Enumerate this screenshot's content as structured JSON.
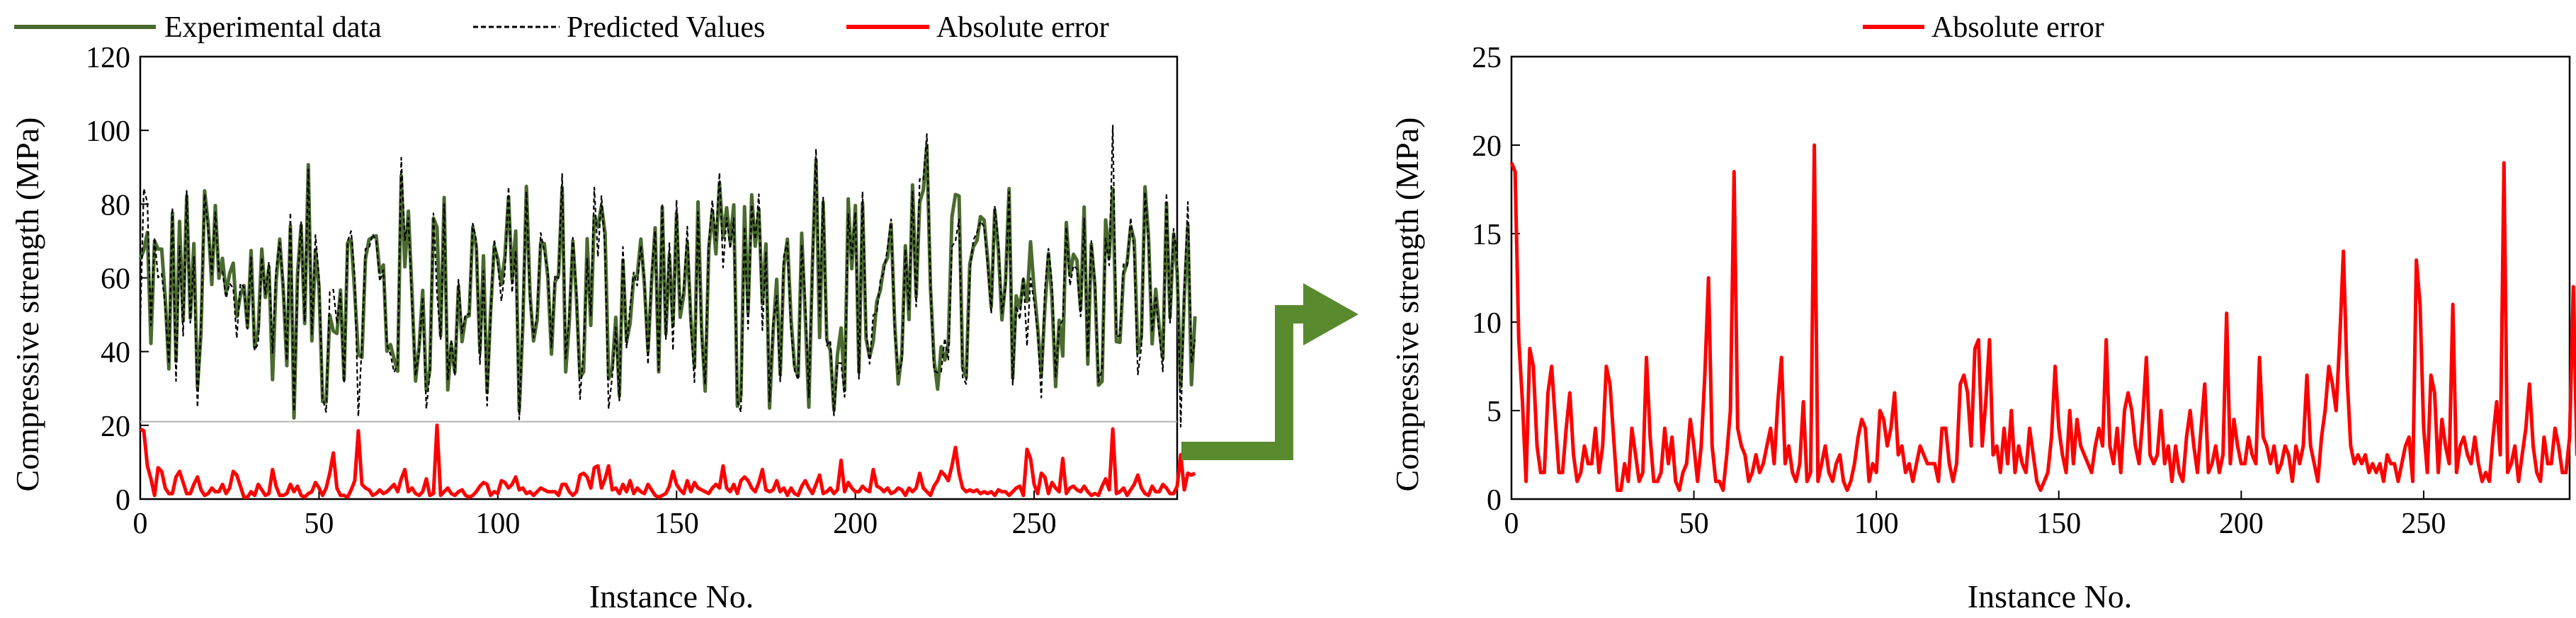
{
  "colors": {
    "experimental": "#4a6a2f",
    "predicted": "#000000",
    "absolute_error": "#ff0000",
    "arrow": "#5a8a2e",
    "reference_line": "#b3b3b3"
  },
  "chart_data": [
    {
      "type": "line",
      "xlabel": "Instance No.",
      "ylabel": "Compressive strength (MPa)",
      "xlim": [
        0,
        290
      ],
      "ylim": [
        0,
        120
      ],
      "xticks": [
        0,
        50,
        100,
        150,
        200,
        250
      ],
      "yticks": [
        0,
        20,
        40,
        60,
        80,
        100,
        120
      ],
      "grid": false,
      "legend_position": "top (outside)",
      "reference_line_y": 21,
      "series": [
        {
          "name": "Experimental data",
          "style": "solid",
          "color": "#4a6a2f",
          "x_start": 0,
          "x_step": 1,
          "values": []
        },
        {
          "name": "Predicted Values",
          "style": "dashed",
          "color": "#000000",
          "x_start": 0,
          "x_step": 1,
          "values": []
        },
        {
          "name": "Absolute error",
          "style": "solid",
          "color": "#ff0000",
          "x_start": 0,
          "x_step": 1,
          "values": [
            19,
            18.5,
            9,
            5.5,
            1,
            8.5,
            7.5,
            3,
            1.5,
            1.5,
            6,
            7.5,
            4.5,
            1.5,
            1.5,
            4,
            6,
            2.5,
            1,
            1.5,
            3,
            2,
            2,
            4,
            1.5,
            3,
            7.5,
            6.5,
            3.5,
            0.5,
            0.5,
            2,
            1,
            4,
            2.5,
            1,
            1.5,
            8,
            3.5,
            1,
            1,
            1.5,
            4,
            2,
            3.5,
            1,
            0.5,
            1.5,
            2,
            4.5,
            3,
            1,
            3,
            7,
            12.5,
            3,
            1,
            1,
            0.5,
            2.5,
            5,
            18.5,
            4,
            3,
            2.5,
            1,
            1.5,
            2.5,
            1.5,
            2,
            3,
            4,
            2,
            5.5,
            8,
            2,
            3,
            1.5,
            1,
            2,
            5.5,
            1,
            1.5,
            20,
            1,
            2,
            3,
            1.5,
            1,
            2,
            2.5,
            1,
            0.5,
            1,
            2,
            3.5,
            4.5,
            4,
            1,
            2,
            1.5,
            5,
            4.5,
            3,
            4,
            6,
            2.5,
            3,
            1.5,
            2,
            1,
            2,
            3,
            2.5,
            2,
            2,
            2,
            1,
            4,
            4,
            2,
            1,
            2,
            6.5,
            7,
            6,
            3,
            8.5,
            9,
            3,
            5.5,
            9,
            2.5,
            3,
            1.5,
            4,
            2,
            5,
            1.5,
            3,
            2,
            1.5,
            4,
            2.5,
            1,
            0.5,
            1,
            1.5,
            3.5,
            7.5,
            4,
            2.5,
            1.5,
            5,
            2,
            4.5,
            3,
            2.5,
            2,
            1.5,
            3,
            4,
            3,
            9,
            3,
            2,
            4,
            1.5,
            5,
            6,
            5,
            3,
            2,
            4.5,
            8,
            2.5,
            2,
            2.5,
            5,
            2,
            3,
            1,
            3,
            1.5,
            1,
            3.5,
            5,
            3,
            1.5,
            4,
            6.5,
            1.5,
            2,
            3,
            1.5,
            2.5,
            10.5,
            2,
            4.5,
            3,
            2,
            2,
            3.5,
            2.5,
            2,
            8,
            3.5,
            3,
            2,
            3,
            1.5,
            2,
            3,
            2.5,
            1,
            3,
            2,
            3,
            7,
            3,
            2,
            1,
            3.5,
            5,
            7.5,
            6.5,
            5,
            9,
            14,
            7,
            3,
            2,
            2.5,
            2,
            2.5,
            1.5,
            2,
            1.5,
            2,
            1,
            2.5,
            2,
            2,
            1,
            2,
            3,
            3.5,
            1,
            13.5,
            11,
            4,
            1.5,
            7,
            6,
            1.5,
            4.5,
            3,
            2,
            11,
            1.5,
            3,
            3.5,
            2.5,
            2,
            3.5,
            2,
            1,
            1.5,
            1,
            3.5,
            5.5,
            2.5,
            19,
            1.5,
            2,
            3,
            1,
            2.5,
            4,
            6.5,
            3,
            1.5,
            1,
            3.5,
            2,
            2,
            4,
            3,
            1.5,
            1.5,
            3.5,
            12,
            2.5,
            7,
            6.5,
            7
          ]
        }
      ]
    },
    {
      "type": "line",
      "xlabel": "Instance No.",
      "ylabel": "Compressive strength (MPa)",
      "xlim": [
        0,
        290
      ],
      "ylim": [
        0,
        25
      ],
      "xticks": [
        0,
        50,
        100,
        150,
        200,
        250
      ],
      "yticks": [
        0,
        5,
        10,
        15,
        20,
        25
      ],
      "grid": false,
      "legend_position": "top (outside)",
      "series": [
        {
          "name": "Absolute error",
          "style": "solid",
          "color": "#ff0000",
          "same_as": "chart_data.0.series.2"
        }
      ]
    }
  ]
}
